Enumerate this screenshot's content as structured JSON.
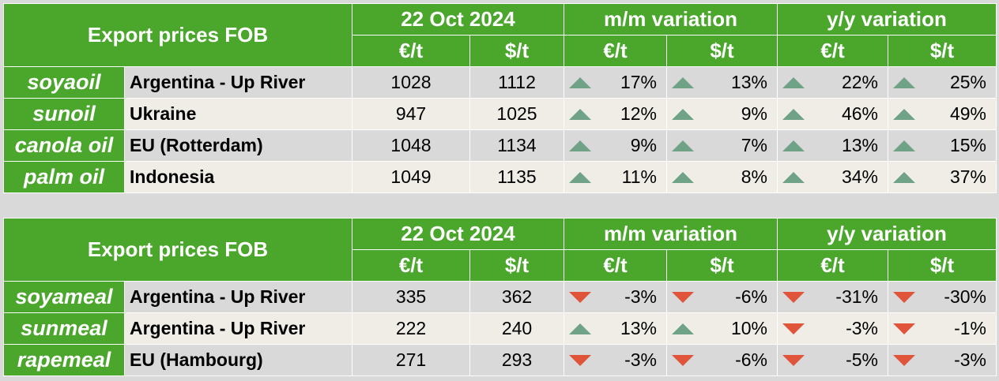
{
  "colors": {
    "header_green": "#4aa72c",
    "row_gray": "#d9d9d9",
    "row_cream": "#efede6",
    "up": "#6fa287",
    "down": "#e0553a"
  },
  "tables": [
    {
      "title": "Export prices FOB",
      "date": "22 Oct 2024",
      "mm_label": "m/m variation",
      "yy_label": "y/y variation",
      "units": [
        "€/t",
        "$/t",
        "€/t",
        "$/t",
        "€/t",
        "$/t"
      ],
      "rows": [
        {
          "product": "soyaoil",
          "origin": "Argentina - Up River",
          "eur": "1028",
          "usd": "1112",
          "mm_eur": "17%",
          "mm_eur_dir": "up",
          "mm_usd": "13%",
          "mm_usd_dir": "up",
          "yy_eur": "22%",
          "yy_eur_dir": "up",
          "yy_usd": "25%",
          "yy_usd_dir": "up"
        },
        {
          "product": "sunoil",
          "origin": "Ukraine",
          "eur": "947",
          "usd": "1025",
          "mm_eur": "12%",
          "mm_eur_dir": "up",
          "mm_usd": "9%",
          "mm_usd_dir": "up",
          "yy_eur": "46%",
          "yy_eur_dir": "up",
          "yy_usd": "49%",
          "yy_usd_dir": "up"
        },
        {
          "product": "canola oil",
          "origin": "EU (Rotterdam)",
          "eur": "1048",
          "usd": "1134",
          "mm_eur": "9%",
          "mm_eur_dir": "up",
          "mm_usd": "7%",
          "mm_usd_dir": "up",
          "yy_eur": "13%",
          "yy_eur_dir": "up",
          "yy_usd": "15%",
          "yy_usd_dir": "up"
        },
        {
          "product": "palm oil",
          "origin": "Indonesia",
          "eur": "1049",
          "usd": "1135",
          "mm_eur": "11%",
          "mm_eur_dir": "up",
          "mm_usd": "8%",
          "mm_usd_dir": "up",
          "yy_eur": "34%",
          "yy_eur_dir": "up",
          "yy_usd": "37%",
          "yy_usd_dir": "up"
        }
      ]
    },
    {
      "title": "Export prices FOB",
      "date": "22 Oct 2024",
      "mm_label": "m/m variation",
      "yy_label": "y/y variation",
      "units": [
        "€/t",
        "$/t",
        "€/t",
        "$/t",
        "€/t",
        "$/t"
      ],
      "rows": [
        {
          "product": "soyameal",
          "origin": "Argentina - Up River",
          "eur": "335",
          "usd": "362",
          "mm_eur": "-3%",
          "mm_eur_dir": "down",
          "mm_usd": "-6%",
          "mm_usd_dir": "down",
          "yy_eur": "-31%",
          "yy_eur_dir": "down",
          "yy_usd": "-30%",
          "yy_usd_dir": "down"
        },
        {
          "product": "sunmeal",
          "origin": "Argentina - Up River",
          "eur": "222",
          "usd": "240",
          "mm_eur": "13%",
          "mm_eur_dir": "up",
          "mm_usd": "10%",
          "mm_usd_dir": "up",
          "yy_eur": "-3%",
          "yy_eur_dir": "down",
          "yy_usd": "-1%",
          "yy_usd_dir": "down"
        },
        {
          "product": "rapemeal",
          "origin": "EU (Hambourg)",
          "eur": "271",
          "usd": "293",
          "mm_eur": "-3%",
          "mm_eur_dir": "down",
          "mm_usd": "-6%",
          "mm_usd_dir": "down",
          "yy_eur": "-5%",
          "yy_eur_dir": "down",
          "yy_usd": "-3%",
          "yy_usd_dir": "down"
        }
      ]
    }
  ]
}
